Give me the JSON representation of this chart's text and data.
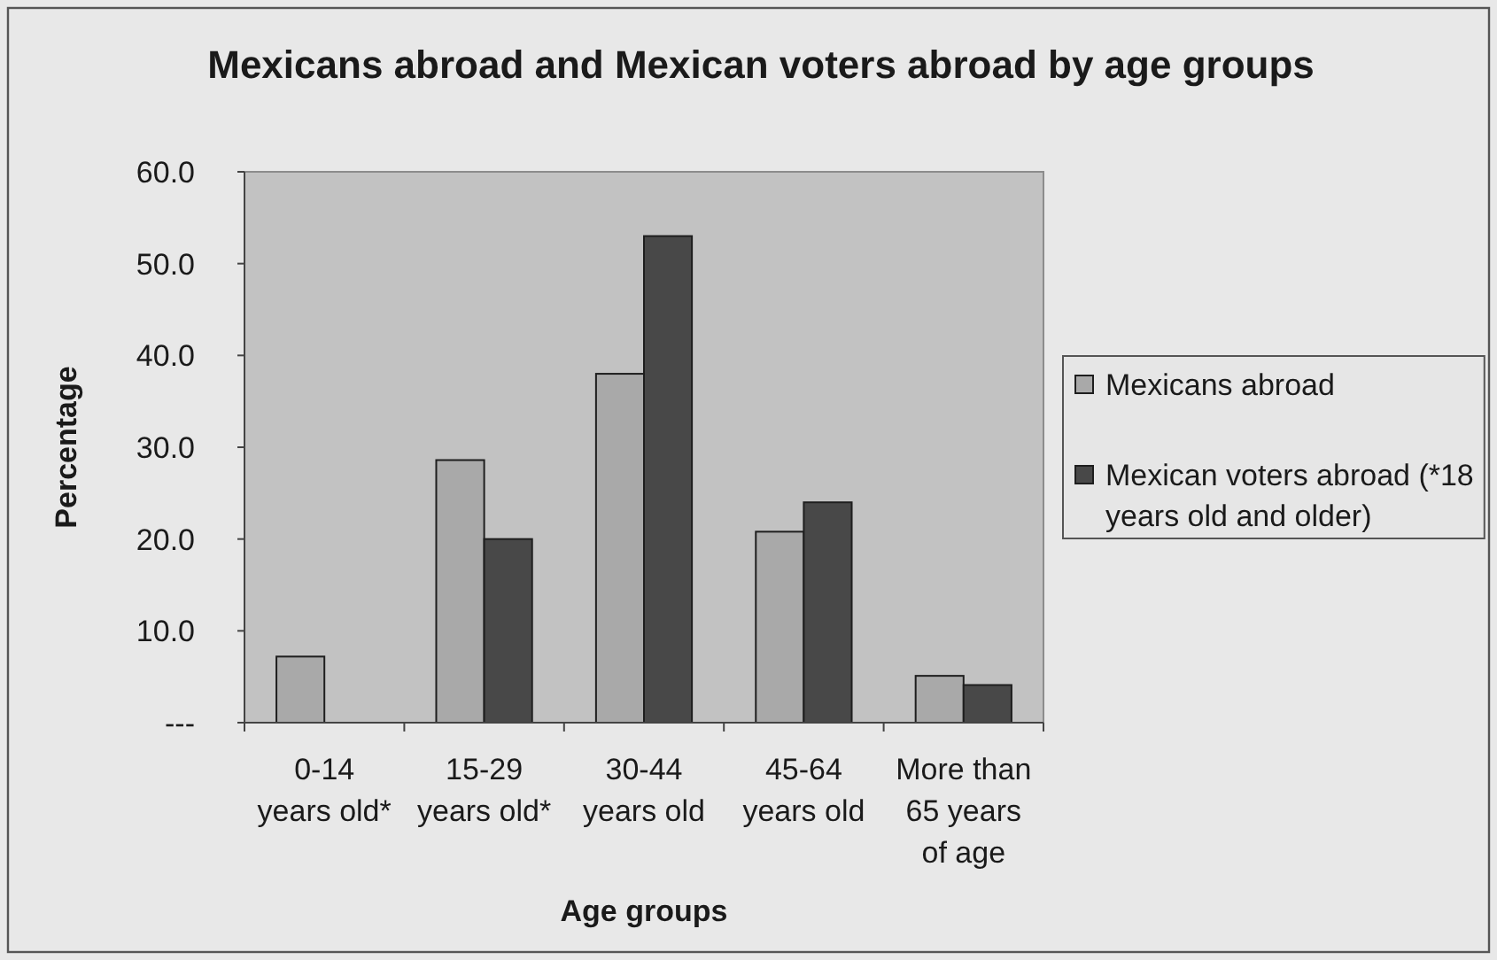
{
  "chart_data": {
    "type": "bar",
    "title": "Mexicans abroad and Mexican voters abroad by age groups",
    "xlabel": "Age groups",
    "ylabel": "Percentage",
    "categories": [
      "0-14 years old*",
      "15-29 years old*",
      "30-44 years old",
      "45-64 years old",
      "More than 65 years of age"
    ],
    "series": [
      {
        "name": "Mexicans abroad",
        "color": "#a9a9a9",
        "values": [
          7.2,
          28.6,
          38.0,
          20.8,
          5.1
        ]
      },
      {
        "name": "Mexican voters abroad (*18 years old and older)",
        "color": "#484848",
        "values": [
          null,
          20.0,
          53.0,
          24.0,
          4.1
        ]
      }
    ],
    "ylim": [
      0,
      60
    ],
    "yticks": [
      {
        "value": 0,
        "label": "---"
      },
      {
        "value": 10,
        "label": "10.0"
      },
      {
        "value": 20,
        "label": "20.0"
      },
      {
        "value": 30,
        "label": "30.0"
      },
      {
        "value": 40,
        "label": "40.0"
      },
      {
        "value": 50,
        "label": "50.0"
      },
      {
        "value": 60,
        "label": "60.0"
      }
    ],
    "legend": "right"
  }
}
